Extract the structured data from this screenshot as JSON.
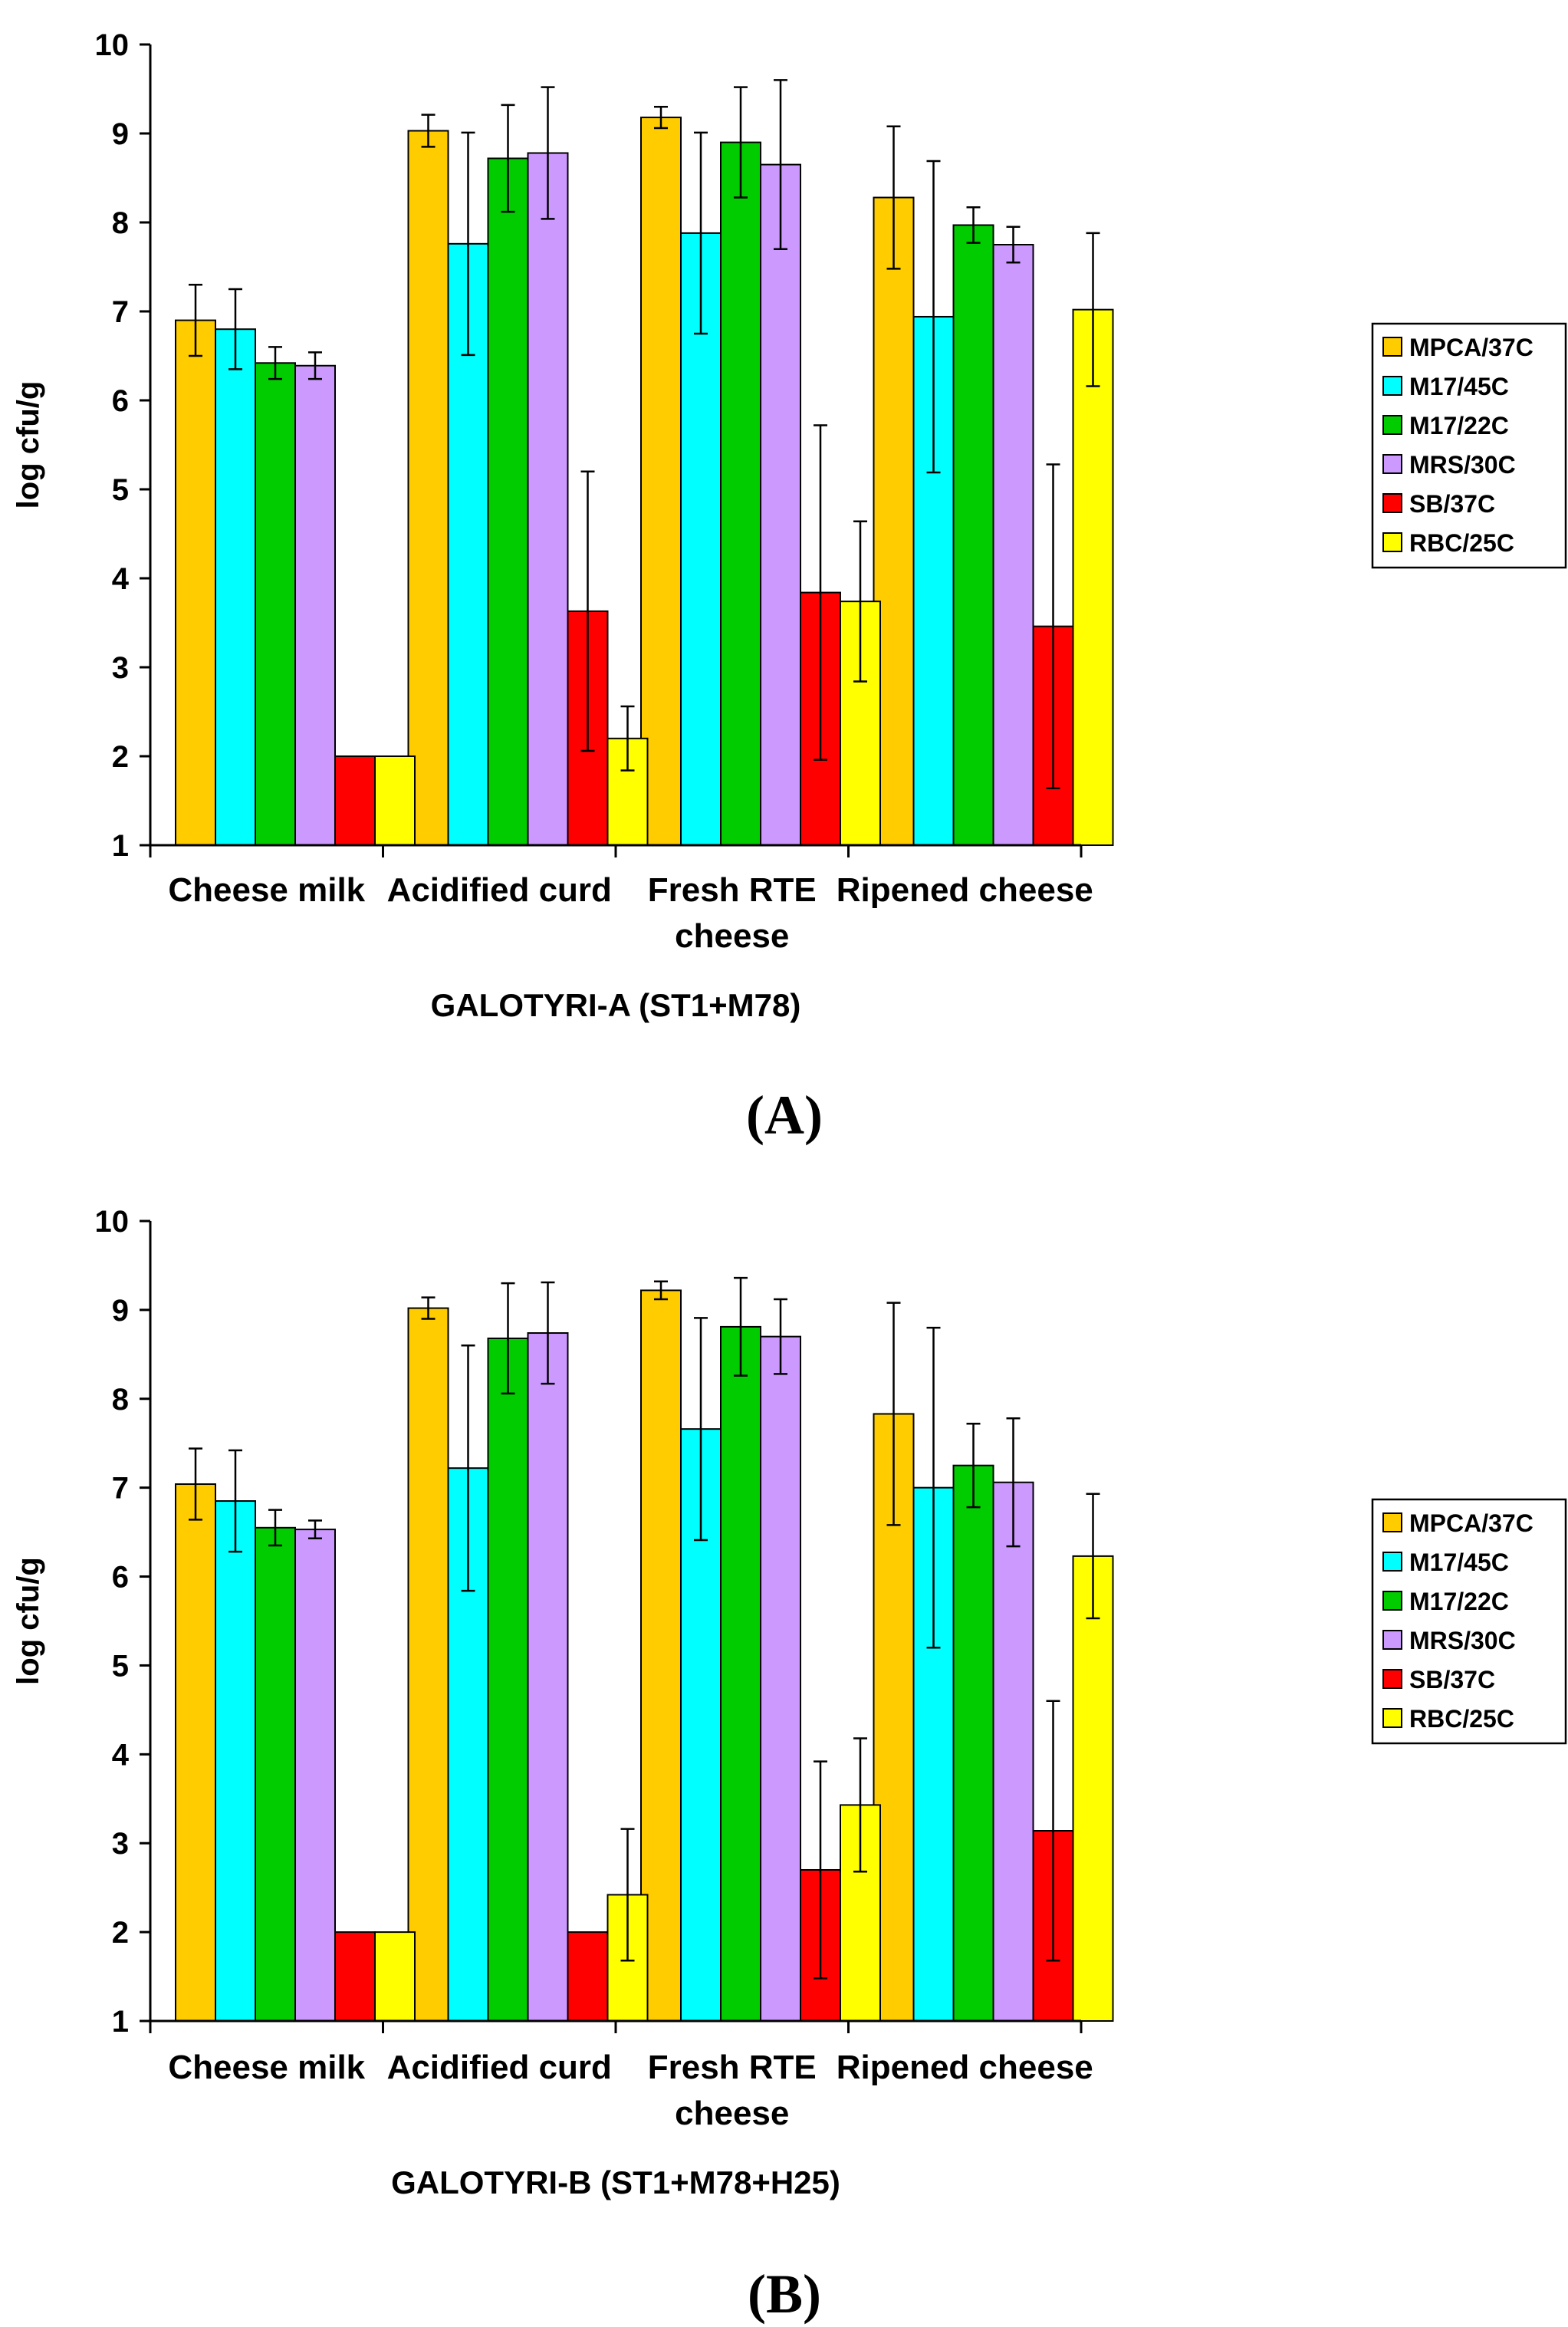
{
  "chart_data": [
    {
      "type": "bar",
      "panel_label": "(A)",
      "xlabel": "GALOTYRI-A (ST1+M78)",
      "ylabel": "log cfu/g",
      "ylim": [
        1,
        10
      ],
      "yticks": [
        1,
        2,
        3,
        4,
        5,
        6,
        7,
        8,
        9,
        10
      ],
      "categories": [
        [
          "Cheese milk"
        ],
        [
          "Acidified curd"
        ],
        [
          "Fresh RTE",
          "cheese"
        ],
        [
          "Ripened cheese"
        ]
      ],
      "legend_position": "right",
      "series": [
        {
          "name": "MPCA/37C",
          "color": "#FFCC00",
          "values": [
            6.9,
            9.03,
            9.18,
            8.28
          ],
          "errors": [
            0.4,
            0.18,
            0.12,
            0.8
          ]
        },
        {
          "name": "M17/45C",
          "color": "#00FFFF",
          "values": [
            6.8,
            7.76,
            7.88,
            6.94
          ],
          "errors": [
            0.45,
            1.25,
            1.13,
            1.75
          ]
        },
        {
          "name": "M17/22C",
          "color": "#00CC00",
          "values": [
            6.42,
            8.72,
            8.9,
            7.97
          ],
          "errors": [
            0.18,
            0.6,
            0.62,
            0.2
          ]
        },
        {
          "name": "MRS/30C",
          "color": "#CC99FF",
          "values": [
            6.39,
            8.78,
            8.65,
            7.75
          ],
          "errors": [
            0.15,
            0.74,
            0.95,
            0.2
          ]
        },
        {
          "name": "SB/37C",
          "color": "#FF0000",
          "values": [
            2.0,
            3.63,
            3.84,
            3.46
          ],
          "errors": [
            0,
            1.57,
            1.88,
            1.82
          ]
        },
        {
          "name": "RBC/25C",
          "color": "#FFFF00",
          "values": [
            2.0,
            2.2,
            3.74,
            7.02
          ],
          "errors": [
            0,
            0.36,
            0.9,
            0.86
          ]
        }
      ]
    },
    {
      "type": "bar",
      "panel_label": "(B)",
      "xlabel": "GALOTYRI-B (ST1+M78+H25)",
      "ylabel": "log cfu/g",
      "ylim": [
        1,
        10
      ],
      "yticks": [
        1,
        2,
        3,
        4,
        5,
        6,
        7,
        8,
        9,
        10
      ],
      "categories": [
        [
          "Cheese milk"
        ],
        [
          "Acidified curd"
        ],
        [
          "Fresh RTE",
          "cheese"
        ],
        [
          "Ripened cheese"
        ]
      ],
      "legend_position": "right",
      "series": [
        {
          "name": "MPCA/37C",
          "color": "#FFCC00",
          "values": [
            7.04,
            9.02,
            9.22,
            7.83
          ],
          "errors": [
            0.4,
            0.12,
            0.1,
            1.25
          ]
        },
        {
          "name": "M17/45C",
          "color": "#00FFFF",
          "values": [
            6.85,
            7.22,
            7.66,
            7.0
          ],
          "errors": [
            0.57,
            1.38,
            1.25,
            1.8
          ]
        },
        {
          "name": "M17/22C",
          "color": "#00CC00",
          "values": [
            6.55,
            8.68,
            8.81,
            7.25
          ],
          "errors": [
            0.2,
            0.62,
            0.55,
            0.47
          ]
        },
        {
          "name": "MRS/30C",
          "color": "#CC99FF",
          "values": [
            6.53,
            8.74,
            8.7,
            7.06
          ],
          "errors": [
            0.1,
            0.57,
            0.42,
            0.72
          ]
        },
        {
          "name": "SB/37C",
          "color": "#FF0000",
          "values": [
            2.0,
            2.0,
            2.7,
            3.14
          ],
          "errors": [
            0,
            0,
            1.22,
            1.46
          ]
        },
        {
          "name": "RBC/25C",
          "color": "#FFFF00",
          "values": [
            2.0,
            2.42,
            3.43,
            6.23
          ],
          "errors": [
            0,
            0.74,
            0.75,
            0.7
          ]
        }
      ]
    }
  ]
}
